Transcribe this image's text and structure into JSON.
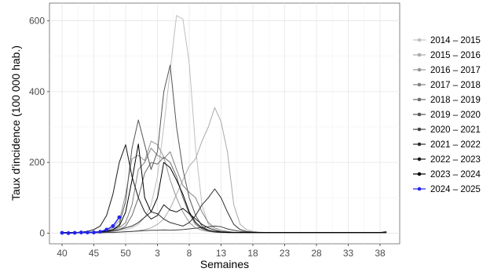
{
  "chart_data": {
    "type": "line",
    "xlabel": "Semaines",
    "ylabel": "Taux d'incidence (100 000 hab.)",
    "x_ticks": [
      "40",
      "45",
      "50",
      "3",
      "8",
      "13",
      "18",
      "23",
      "28",
      "33",
      "38"
    ],
    "y_ticks": [
      "0",
      "200",
      "400",
      "600"
    ],
    "ylim": [
      -30,
      650
    ],
    "grid": true,
    "legend_position": "right",
    "weeks": [
      "40",
      "41",
      "42",
      "43",
      "44",
      "45",
      "46",
      "47",
      "48",
      "49",
      "50",
      "51",
      "52",
      "1",
      "2",
      "3",
      "4",
      "5",
      "6",
      "7",
      "8",
      "9",
      "10",
      "11",
      "12",
      "13",
      "14",
      "15",
      "16",
      "17",
      "18",
      "19",
      "20",
      "21",
      "22",
      "23",
      "24",
      "25",
      "26",
      "27",
      "28",
      "29",
      "30",
      "31",
      "32",
      "33",
      "34",
      "35",
      "36",
      "37",
      "38",
      "39"
    ],
    "series": [
      {
        "name": "2014 – 2015",
        "color": "#bfbfbf",
        "values": [
          2,
          2,
          2,
          2,
          2,
          3,
          3,
          4,
          5,
          7,
          10,
          15,
          25,
          45,
          80,
          160,
          300,
          460,
          615,
          605,
          480,
          240,
          80,
          25,
          10,
          5,
          3,
          2,
          2,
          2,
          2,
          2,
          2,
          2,
          2,
          2,
          2,
          2,
          2,
          2,
          2,
          2,
          2,
          2,
          2,
          2,
          2,
          2,
          2,
          2,
          2,
          2
        ]
      },
      {
        "name": "2015 – 2016",
        "color": "#aaaaaa",
        "values": [
          2,
          2,
          2,
          2,
          2,
          2,
          2,
          2,
          2,
          3,
          4,
          5,
          7,
          10,
          15,
          25,
          40,
          70,
          110,
          150,
          190,
          210,
          260,
          300,
          355,
          315,
          230,
          80,
          25,
          10,
          5,
          3,
          2,
          2,
          2,
          2,
          2,
          2,
          2,
          2,
          2,
          2,
          2,
          2,
          2,
          2,
          2,
          2,
          2,
          2,
          2,
          2
        ]
      },
      {
        "name": "2016 – 2017",
        "color": "#959595",
        "values": [
          2,
          2,
          2,
          2,
          3,
          4,
          5,
          8,
          15,
          35,
          110,
          210,
          220,
          205,
          260,
          250,
          215,
          150,
          100,
          60,
          30,
          15,
          8,
          5,
          3,
          2,
          2,
          2,
          2,
          2,
          2,
          2,
          2,
          2,
          2,
          2,
          2,
          2,
          2,
          2,
          2,
          2,
          2,
          2,
          2,
          2,
          2,
          2,
          2,
          2,
          2,
          2
        ]
      },
      {
        "name": "2017 – 2018",
        "color": "#808080",
        "values": [
          2,
          2,
          2,
          2,
          2,
          3,
          4,
          5,
          8,
          15,
          30,
          80,
          180,
          200,
          240,
          220,
          210,
          230,
          180,
          135,
          115,
          100,
          60,
          30,
          15,
          8,
          5,
          3,
          2,
          2,
          2,
          2,
          2,
          2,
          2,
          2,
          2,
          2,
          2,
          2,
          2,
          2,
          2,
          2,
          2,
          2,
          2,
          2,
          2,
          2,
          2,
          2
        ]
      },
      {
        "name": "2018 – 2019",
        "color": "#6b6b6b",
        "values": [
          2,
          2,
          2,
          2,
          2,
          2,
          3,
          4,
          6,
          10,
          20,
          50,
          100,
          170,
          200,
          195,
          215,
          200,
          160,
          100,
          55,
          25,
          12,
          6,
          3,
          2,
          2,
          2,
          2,
          2,
          2,
          2,
          2,
          2,
          2,
          2,
          2,
          2,
          2,
          2,
          2,
          2,
          2,
          2,
          2,
          2,
          2,
          2,
          2,
          2,
          2,
          2
        ]
      },
      {
        "name": "2019 – 2020",
        "color": "#565656",
        "values": [
          2,
          2,
          2,
          2,
          2,
          3,
          4,
          6,
          10,
          25,
          90,
          240,
          320,
          250,
          180,
          230,
          400,
          475,
          300,
          180,
          100,
          50,
          20,
          8,
          4,
          3,
          2,
          2,
          2,
          2,
          2,
          2,
          2,
          2,
          2,
          2,
          2,
          2,
          2,
          2,
          2,
          2,
          2,
          2,
          2,
          2,
          2,
          2,
          2,
          2,
          2,
          2
        ]
      },
      {
        "name": "2020 – 2021",
        "color": "#424242",
        "values": [
          1,
          1,
          1,
          1,
          1,
          1,
          1,
          2,
          2,
          3,
          4,
          5,
          6,
          7,
          8,
          8,
          9,
          8,
          9,
          10,
          12,
          14,
          16,
          18,
          20,
          18,
          12,
          8,
          5,
          3,
          2,
          2,
          2,
          2,
          2,
          2,
          2,
          2,
          2,
          2,
          2,
          2,
          2,
          2,
          2,
          2,
          2,
          2,
          2,
          2,
          2,
          2
        ]
      },
      {
        "name": "2021 – 2022",
        "color": "#2d2d2d",
        "values": [
          2,
          2,
          2,
          2,
          2,
          2,
          3,
          4,
          6,
          10,
          15,
          20,
          30,
          45,
          60,
          55,
          40,
          30,
          25,
          20,
          30,
          50,
          80,
          100,
          125,
          100,
          60,
          25,
          10,
          5,
          3,
          2,
          2,
          2,
          2,
          2,
          2,
          2,
          2,
          2,
          2,
          2,
          2,
          2,
          2,
          2,
          2,
          2,
          2,
          2,
          2,
          2
        ]
      },
      {
        "name": "2022 – 2023",
        "color": "#181818",
        "values": [
          2,
          2,
          2,
          3,
          5,
          10,
          20,
          50,
          110,
          200,
          250,
          160,
          100,
          60,
          40,
          50,
          80,
          65,
          60,
          70,
          55,
          40,
          25,
          15,
          8,
          4,
          3,
          2,
          2,
          2,
          2,
          2,
          2,
          2,
          2,
          2,
          2,
          2,
          2,
          2,
          2,
          2,
          2,
          2,
          2,
          2,
          2,
          2,
          2,
          2,
          2,
          2
        ]
      },
      {
        "name": "2023 – 2024",
        "color": "#000000",
        "values": [
          2,
          2,
          2,
          2,
          2,
          3,
          4,
          6,
          10,
          20,
          60,
          150,
          252,
          100,
          60,
          100,
          200,
          185,
          150,
          110,
          60,
          30,
          15,
          8,
          4,
          3,
          2,
          2,
          2,
          2,
          2,
          2,
          2,
          2,
          2,
          2,
          2,
          2,
          2,
          2,
          2,
          2,
          2,
          2,
          2,
          2,
          2,
          2,
          2,
          2,
          2,
          4
        ]
      },
      {
        "name": "2024 – 2025",
        "color": "#2323ee",
        "values": [
          1,
          0,
          1,
          2,
          2,
          2,
          4,
          10,
          20,
          45
        ]
      }
    ]
  }
}
